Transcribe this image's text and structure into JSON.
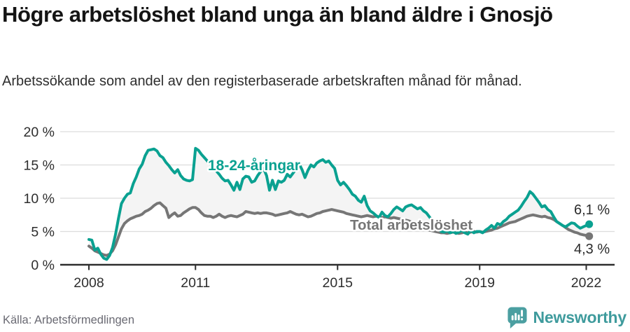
{
  "header": {
    "title": "Högre arbetslöshet bland unga än bland äldre i Gnosjö",
    "subtitle": "Arbetssökande som andel av den registerbaserade arbetskraften månad för månad."
  },
  "footer": {
    "source": "Källa: Arbetsförmedlingen",
    "brand": "Newsworthy",
    "brand_color": "#3f9b9d",
    "brand_icon": "newsworthy-speech-bubble-bar-chart-icon"
  },
  "colors": {
    "accent_teal": "#0aa191",
    "series_gray": "#767676",
    "band_fill": "#f4f4f4",
    "gridline": "#dcdcdc",
    "axis": "#2e2e2e",
    "text_dark": "#141414",
    "value_label": "#2b2b2b"
  },
  "chart_data": {
    "type": "line",
    "frequency": "monthly",
    "start": {
      "year": 2008,
      "month": 1
    },
    "end": {
      "year": 2022,
      "month": 2
    },
    "ylim": [
      0,
      20
    ],
    "y_ticks": [
      0,
      5,
      10,
      15,
      20
    ],
    "y_tick_labels": [
      "0 %",
      "5 %",
      "10 %",
      "15 %",
      "20 %"
    ],
    "x_tick_years": [
      2008,
      2011,
      2015,
      2019,
      2022
    ],
    "x_tick_labels": [
      "2008",
      "2011",
      "2015",
      "2019",
      "2022"
    ],
    "grid": true,
    "legend_position": "inline-labels",
    "band_fill": "#f4f4f4",
    "series": [
      {
        "name": "18-24-åringar",
        "color": "#0aa191",
        "end_label": "6,1 %",
        "end_value": 6.1,
        "values": [
          3.8,
          3.7,
          2.2,
          2.5,
          1.6,
          1.0,
          0.8,
          1.4,
          2.6,
          4.6,
          7.0,
          9.2,
          10.0,
          10.6,
          10.8,
          12.2,
          13.2,
          14.4,
          15.1,
          16.4,
          17.2,
          17.3,
          17.4,
          17.1,
          16.4,
          16.1,
          15.4,
          14.9,
          14.3,
          13.8,
          14.3,
          13.4,
          12.9,
          12.7,
          12.6,
          12.8,
          17.5,
          17.2,
          16.6,
          16.1,
          15.6,
          15.1,
          14.6,
          14.1,
          13.6,
          13.0,
          12.6,
          12.7,
          12.0,
          11.2,
          12.4,
          11.3,
          12.9,
          13.3,
          13.2,
          12.4,
          12.6,
          13.4,
          14.0,
          14.5,
          13.4,
          11.2,
          12.7,
          11.3,
          12.6,
          12.4,
          12.7,
          13.6,
          13.2,
          13.8,
          14.4,
          15.2,
          14.3,
          13.1,
          14.2,
          15.0,
          14.7,
          15.3,
          15.6,
          15.8,
          15.4,
          15.6,
          15.0,
          14.5,
          12.7,
          12.0,
          12.4,
          11.9,
          11.3,
          10.6,
          10.3,
          9.7,
          9.4,
          10.3,
          8.9,
          8.1,
          7.8,
          7.4,
          7.1,
          7.9,
          7.4,
          7.2,
          7.7,
          8.3,
          8.7,
          8.4,
          8.1,
          8.7,
          8.9,
          9.0,
          8.7,
          8.4,
          8.6,
          8.1,
          7.8,
          7.2,
          6.6,
          6.2,
          5.6,
          5.0,
          4.9,
          5.1,
          4.8,
          5.0,
          4.7,
          4.9,
          5.2,
          4.8,
          4.6,
          5.2,
          4.8,
          5.0,
          5.0,
          4.8,
          5.2,
          5.5,
          5.9,
          5.5,
          6.2,
          6.0,
          6.5,
          6.8,
          7.3,
          7.6,
          7.9,
          8.2,
          8.8,
          9.5,
          10.1,
          11.0,
          10.6,
          10.0,
          9.4,
          8.7,
          8.9,
          8.3,
          8.0,
          7.2,
          6.5,
          6.2,
          5.9,
          5.7,
          6.0,
          6.3,
          6.2,
          5.8,
          5.5,
          5.7,
          5.9,
          6.1
        ]
      },
      {
        "name": "Total arbetslöshet",
        "color": "#767676",
        "end_label": "4,3 %",
        "end_value": 4.3,
        "values": [
          2.8,
          2.5,
          2.1,
          1.9,
          1.7,
          1.5,
          1.4,
          1.6,
          2.1,
          3.0,
          4.2,
          5.4,
          6.2,
          6.6,
          6.9,
          7.1,
          7.3,
          7.4,
          7.6,
          8.0,
          8.2,
          8.5,
          8.9,
          9.2,
          9.3,
          8.9,
          8.5,
          7.1,
          7.5,
          7.8,
          7.3,
          7.4,
          7.8,
          8.1,
          8.4,
          8.6,
          8.6,
          8.3,
          7.8,
          7.4,
          7.3,
          7.3,
          7.1,
          7.3,
          7.6,
          7.3,
          7.1,
          7.3,
          7.4,
          7.3,
          7.2,
          7.4,
          7.6,
          8.0,
          7.9,
          7.8,
          7.7,
          7.8,
          7.7,
          7.8,
          7.8,
          7.7,
          7.6,
          7.4,
          7.5,
          7.6,
          7.7,
          7.8,
          8.0,
          7.8,
          7.6,
          7.5,
          7.6,
          7.4,
          7.2,
          7.3,
          7.5,
          7.7,
          7.8,
          8.0,
          8.1,
          8.2,
          8.3,
          8.2,
          8.1,
          8.0,
          7.9,
          7.7,
          7.6,
          7.5,
          7.4,
          7.3,
          7.2,
          7.3,
          7.4,
          7.3,
          7.2,
          7.3,
          7.2,
          7.1,
          7.2,
          7.1,
          7.0,
          7.1,
          7.0,
          6.9,
          6.8,
          6.7,
          6.6,
          6.4,
          6.1,
          5.9,
          5.7,
          5.5,
          5.3,
          5.2,
          5.1,
          5.0,
          4.9,
          4.8,
          4.8,
          4.7,
          4.8,
          4.9,
          4.8,
          4.7,
          4.8,
          4.9,
          4.8,
          4.9,
          5.0,
          4.9,
          5.0,
          4.9,
          5.0,
          5.1,
          5.2,
          5.4,
          5.5,
          5.7,
          5.9,
          6.1,
          6.3,
          6.4,
          6.5,
          6.7,
          6.9,
          7.1,
          7.3,
          7.4,
          7.5,
          7.4,
          7.3,
          7.2,
          7.3,
          7.1,
          7.0,
          6.8,
          6.5,
          6.2,
          5.9,
          5.6,
          5.3,
          5.1,
          4.9,
          4.8,
          4.6,
          4.5,
          4.4,
          4.3
        ]
      }
    ]
  }
}
